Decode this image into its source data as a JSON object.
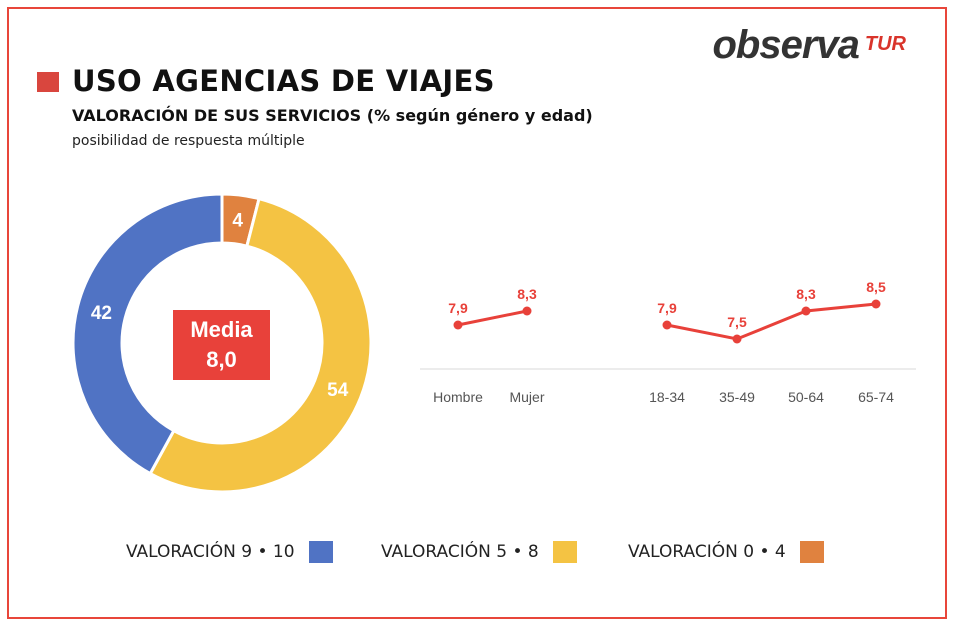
{
  "logo": {
    "main": "observa",
    "suffix": "TUR"
  },
  "header": {
    "title": "USO AGENCIAS DE VIAJES",
    "subtitle": "VALORACIÓN DE SUS SERVICIOS (% según género y edad)",
    "note": "posibilidad de respuesta múltiple"
  },
  "colors": {
    "accent": "#e8413a",
    "blue": "#5073c4",
    "yellow": "#f4c343",
    "orange": "#e0823f",
    "line": "#e8413a"
  },
  "media": {
    "label": "Media",
    "value": "8,0"
  },
  "chart_data": [
    {
      "type": "pie",
      "donut": true,
      "categories": [
        "VALORACIÓN 0 • 4",
        "VALORACIÓN 5 • 8",
        "VALORACIÓN 9 • 10"
      ],
      "values": [
        4,
        54,
        42
      ],
      "colors": [
        "#e0823f",
        "#f4c343",
        "#5073c4"
      ],
      "data_labels": [
        "4",
        "54",
        "42"
      ]
    },
    {
      "type": "line",
      "groups": [
        {
          "categories": [
            "Hombre",
            "Mujer"
          ],
          "values": [
            7.9,
            8.3
          ],
          "data_labels": [
            "7,9",
            "8,3"
          ]
        },
        {
          "categories": [
            "18-34",
            "35-49",
            "50-64",
            "65-74"
          ],
          "values": [
            7.9,
            7.5,
            8.3,
            8.5
          ],
          "data_labels": [
            "7,9",
            "7,5",
            "8,3",
            "8,5"
          ]
        }
      ],
      "grid": false
    }
  ],
  "legend": [
    {
      "label": "VALORACIÓN 9 • 10",
      "color": "#5073c4"
    },
    {
      "label": "VALORACIÓN 5 • 8",
      "color": "#f4c343"
    },
    {
      "label": "VALORACIÓN 0 • 4",
      "color": "#e0823f"
    }
  ]
}
